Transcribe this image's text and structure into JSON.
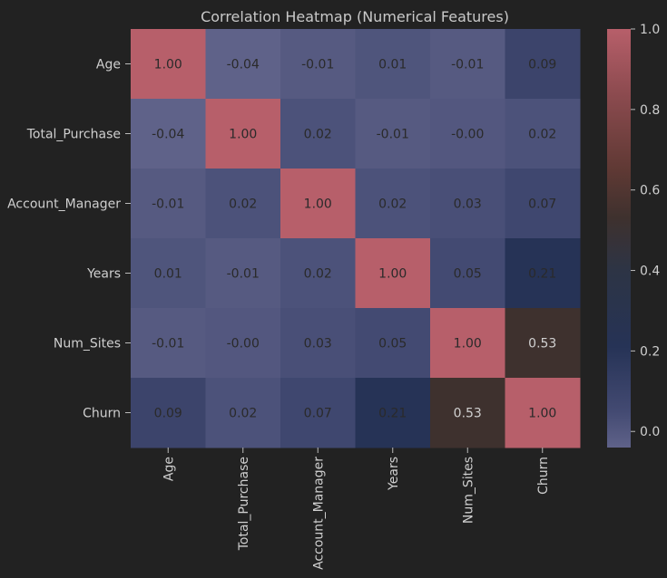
{
  "chart_data": {
    "type": "heatmap",
    "title": "Correlation Heatmap (Numerical Features)",
    "xlabel": "",
    "ylabel": "",
    "rows": [
      "Age",
      "Total_Purchase",
      "Account_Manager",
      "Years",
      "Num_Sites",
      "Churn"
    ],
    "columns": [
      "Age",
      "Total_Purchase",
      "Account_Manager",
      "Years",
      "Num_Sites",
      "Churn"
    ],
    "values": [
      [
        1.0,
        -0.04,
        -0.01,
        0.01,
        -0.01,
        0.09
      ],
      [
        -0.04,
        1.0,
        0.02,
        -0.01,
        -0.0,
        0.02
      ],
      [
        -0.01,
        0.02,
        1.0,
        0.02,
        0.03,
        0.07
      ],
      [
        0.01,
        -0.01,
        0.02,
        1.0,
        0.05,
        0.21
      ],
      [
        -0.01,
        -0.0,
        0.03,
        0.05,
        1.0,
        0.53
      ],
      [
        0.09,
        0.02,
        0.07,
        0.21,
        0.53,
        1.0
      ]
    ],
    "labels": [
      [
        "1.00",
        "-0.04",
        "-0.01",
        "0.01",
        "-0.01",
        "0.09"
      ],
      [
        "-0.04",
        "1.00",
        "0.02",
        "-0.01",
        "-0.00",
        "0.02"
      ],
      [
        "-0.01",
        "0.02",
        "1.00",
        "0.02",
        "0.03",
        "0.07"
      ],
      [
        "0.01",
        "-0.01",
        "0.02",
        "1.00",
        "0.05",
        "0.21"
      ],
      [
        "-0.01",
        "-0.00",
        "0.03",
        "0.05",
        "1.00",
        "0.53"
      ],
      [
        "0.09",
        "0.02",
        "0.07",
        "0.21",
        "0.53",
        "1.00"
      ]
    ],
    "colorbar": {
      "range": [
        -0.04,
        1.0
      ],
      "ticks": [
        0.0,
        0.2,
        0.4,
        0.6,
        0.8,
        1.0
      ],
      "tick_labels": [
        "0.0",
        "0.2",
        "0.4",
        "0.6",
        "0.8",
        "1.0"
      ]
    },
    "colormap_stops": [
      {
        "v": -0.04,
        "color": "#5f6289"
      },
      {
        "v": 0.05,
        "color": "#434a72"
      },
      {
        "v": 0.21,
        "color": "#263356"
      },
      {
        "v": 0.4,
        "color": "#2d3445"
      },
      {
        "v": 0.53,
        "color": "#3e312e"
      },
      {
        "v": 0.65,
        "color": "#5f3934"
      },
      {
        "v": 0.85,
        "color": "#8f4c51"
      },
      {
        "v": 1.0,
        "color": "#b75f6a"
      }
    ],
    "text_color_dark": "#2a2a2a",
    "text_color_light": "#d0d0d0",
    "background": "#222222"
  }
}
